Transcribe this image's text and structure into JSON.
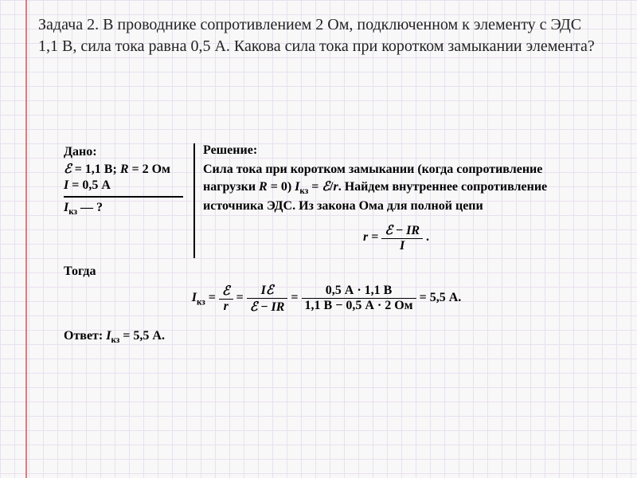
{
  "problem": {
    "text": "Задача 2. В проводнике сопротивлением 2 Ом, подключенном к элементу с ЭДС 1,1 В, сила тока равна 0,5 А. Какова сила тока при коротком замыкании элемента?"
  },
  "given": {
    "heading": "Дано:",
    "line1_a": "ℰ = 1,1 В;",
    "line1_b": "R = 2 Ом",
    "line2": "I = 0,5 А",
    "find": "Iкз — ?"
  },
  "solution": {
    "heading": "Решение:",
    "para": "Сила тока при коротком замыкании (когда сопротивление нагрузки R = 0) Iкз = ℰ/r. Найдем внутреннее сопротивление источника ЭДС. Из закона Ома для полной цепи",
    "eq_r_lhs": "r =",
    "eq_r_num": "ℰ − IR",
    "eq_r_den": "I",
    "then": "Тогда",
    "eq_iks_lhs": "Iкз =",
    "eq_iks_f1_num": "ℰ",
    "eq_iks_f1_den": "r",
    "eq_iks_f2_num": "Iℰ",
    "eq_iks_f2_den": "ℰ − IR",
    "eq_iks_f3_num": "0,5 А · 1,1 В",
    "eq_iks_f3_den": "1,1 В − 0,5 А · 2 Ом",
    "eq_iks_result": "= 5,5 А.",
    "answer_label": "Ответ:",
    "answer_value": "Iкз = 5,5 А."
  },
  "style": {
    "problem_fontsize": 20,
    "solution_fontsize": 16,
    "grid_color": "#e8e0f0",
    "margin_line_color": "#e07a7a",
    "text_color": "#000000"
  }
}
